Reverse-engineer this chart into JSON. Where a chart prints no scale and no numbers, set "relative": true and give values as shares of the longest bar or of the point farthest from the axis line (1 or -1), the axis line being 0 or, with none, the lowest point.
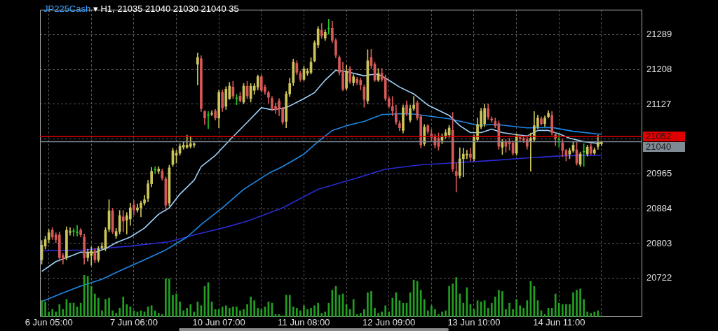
{
  "chart_data": [
    {
      "type": "candlestick",
      "title": "JP225Cash ▾ H1, 21035 21040 21030 21040 35",
      "categories": [
        null,
        null,
        "6 Jun 05:00",
        null,
        null,
        null,
        null,
        null,
        null,
        null,
        null,
        null,
        null,
        null,
        null,
        null,
        null,
        null,
        null,
        null,
        null,
        null,
        null,
        null,
        null,
        null,
        "7 Jun 06:00",
        null,
        null,
        null,
        null,
        null,
        null,
        null,
        null,
        null,
        null,
        null,
        null,
        null,
        null,
        null,
        null,
        null,
        null,
        null,
        null,
        null,
        null,
        null,
        "10 Jun 07:00",
        null,
        null,
        null,
        null,
        null,
        null,
        null,
        null,
        null,
        null,
        null,
        null,
        null,
        null,
        null,
        null,
        null,
        null,
        null,
        null,
        null,
        null,
        null,
        "11 Jun 08:00",
        null,
        null,
        null,
        null,
        null,
        null,
        null,
        null,
        null,
        null,
        null,
        null,
        null,
        null,
        null,
        null,
        null,
        null,
        null,
        null,
        null,
        null,
        null,
        "12 Jun 09:00",
        null,
        null,
        null,
        null,
        null,
        null,
        null,
        null,
        null,
        null,
        null,
        null,
        null,
        null,
        null,
        null,
        null,
        null,
        null,
        null,
        null,
        null,
        null,
        "13 Jun 10:00",
        null,
        null,
        null,
        null,
        null,
        null,
        null,
        null,
        null,
        null,
        null,
        null,
        null,
        null,
        null,
        null,
        null,
        null,
        null,
        null,
        null,
        null,
        null,
        "14 Jun 11:00",
        null,
        null,
        null,
        null,
        null,
        null,
        null,
        null,
        null,
        null,
        null,
        null,
        null,
        null,
        null,
        null,
        null,
        null,
        null,
        null,
        null,
        null,
        null
      ],
      "ohlc": [
        [
          20765,
          20810,
          20755,
          20799
        ],
        [
          20797,
          20820,
          20790,
          20812
        ],
        [
          20812,
          20836,
          20805,
          20828
        ],
        [
          20834,
          20840,
          20812,
          20818
        ],
        [
          20823,
          20828,
          20805,
          20812
        ],
        [
          20823,
          20830,
          20762,
          20770
        ],
        [
          20775,
          20780,
          20755,
          20767
        ],
        [
          20770,
          20842,
          20765,
          20834
        ],
        [
          20829,
          20840,
          20822,
          20831
        ],
        [
          20831,
          20838,
          20820,
          20831
        ],
        [
          20828,
          20845,
          20820,
          20828
        ],
        [
          20834,
          20838,
          20818,
          20823
        ],
        [
          20818,
          20825,
          20755,
          20770
        ],
        [
          20770,
          20790,
          20762,
          20781
        ],
        [
          20775,
          20795,
          20752,
          20786
        ],
        [
          20786,
          20792,
          20758,
          20765
        ],
        [
          20765,
          20796,
          20760,
          20791
        ],
        [
          20793,
          20805,
          20788,
          20797
        ],
        [
          20791,
          20840,
          20786,
          20834
        ],
        [
          20836,
          20905,
          20830,
          20879
        ],
        [
          20879,
          20885,
          20826,
          20831
        ],
        [
          20821,
          20838,
          20815,
          20831
        ],
        [
          20831,
          20880,
          20825,
          20868
        ],
        [
          20865,
          20880,
          20830,
          20855
        ],
        [
          20857,
          20875,
          20825,
          20868
        ],
        [
          20860,
          20897,
          20845,
          20886
        ],
        [
          20892,
          20903,
          20870,
          20881
        ],
        [
          20881,
          20895,
          20876,
          20886
        ],
        [
          20886,
          20902,
          20865,
          20897
        ],
        [
          20897,
          20915,
          20892,
          20905
        ],
        [
          20908,
          20950,
          20900,
          20942
        ],
        [
          20942,
          20980,
          20935,
          20971
        ],
        [
          20974,
          20982,
          20966,
          20974
        ],
        [
          20971,
          20982,
          20966,
          20976
        ],
        [
          20971,
          20976,
          20950,
          20955
        ],
        [
          20953,
          20958,
          20878,
          20892
        ],
        [
          20897,
          20985,
          20890,
          20979
        ],
        [
          20987,
          21025,
          20982,
          21019
        ],
        [
          21008,
          21020,
          20990,
          21013
        ],
        [
          21013,
          21035,
          21008,
          21029
        ],
        [
          21027,
          21040,
          21022,
          21032
        ],
        [
          21027,
          21055,
          21024,
          21032
        ],
        [
          21029,
          21052,
          21025,
          21035
        ],
        [
          21032,
          21038,
          21027,
          21035
        ],
        [
          21220,
          21246,
          21172,
          21236
        ],
        [
          21233,
          21240,
          21110,
          21117
        ],
        [
          21110,
          21112,
          21080,
          21095
        ],
        [
          21101,
          21110,
          21070,
          21101
        ],
        [
          21104,
          21112,
          21100,
          21106
        ],
        [
          21111,
          21115,
          21090,
          21095
        ],
        [
          21095,
          21160,
          21072,
          21155
        ],
        [
          21155,
          21160,
          21110,
          21119
        ],
        [
          21122,
          21168,
          21115,
          21162
        ],
        [
          21140,
          21178,
          21138,
          21169
        ],
        [
          21167,
          21180,
          21140,
          21146
        ],
        [
          21140,
          21150,
          21126,
          21140
        ],
        [
          21146,
          21155,
          21132,
          21135
        ],
        [
          21132,
          21175,
          21128,
          21169
        ],
        [
          21169,
          21180,
          21140,
          21146
        ],
        [
          21140,
          21175,
          21132,
          21169
        ],
        [
          21159,
          21175,
          21150,
          21169
        ],
        [
          21167,
          21195,
          21160,
          21191
        ],
        [
          21191,
          21195,
          21155,
          21159
        ],
        [
          21167,
          21172,
          21150,
          21156
        ],
        [
          21154,
          21158,
          21130,
          21143
        ],
        [
          21140,
          21145,
          21112,
          21117
        ],
        [
          21122,
          21130,
          21105,
          21114
        ],
        [
          21135,
          21140,
          21100,
          21117
        ],
        [
          21117,
          21120,
          21080,
          21085
        ],
        [
          21087,
          21157,
          21072,
          21151
        ],
        [
          21151,
          21188,
          21145,
          21175
        ],
        [
          21177,
          21232,
          21170,
          21225
        ],
        [
          21222,
          21228,
          21196,
          21201
        ],
        [
          21199,
          21204,
          21180,
          21185
        ],
        [
          21185,
          21215,
          21182,
          21209
        ],
        [
          21199,
          21210,
          21194,
          21204
        ],
        [
          21201,
          21235,
          21197,
          21225
        ],
        [
          21228,
          21275,
          21225,
          21270
        ],
        [
          21265,
          21308,
          21258,
          21302
        ],
        [
          21299,
          21315,
          21280,
          21286
        ],
        [
          21281,
          21300,
          21275,
          21294
        ],
        [
          21302,
          21325,
          21290,
          21302
        ],
        [
          21304,
          21320,
          21270,
          21275
        ],
        [
          21275,
          21280,
          21235,
          21241
        ],
        [
          21236,
          21240,
          21195,
          21201
        ],
        [
          21201,
          21225,
          21158,
          21162
        ],
        [
          21164,
          21218,
          21160,
          21204
        ],
        [
          21209,
          21215,
          21175,
          21180
        ],
        [
          21177,
          21196,
          21170,
          21191
        ],
        [
          21185,
          21190,
          21172,
          21177
        ],
        [
          21183,
          21188,
          21160,
          21172
        ],
        [
          21167,
          21172,
          21120,
          21138
        ],
        [
          21135,
          21254,
          21128,
          21228
        ],
        [
          21236,
          21255,
          21210,
          21217
        ],
        [
          21220,
          21225,
          21180,
          21183
        ],
        [
          21183,
          21210,
          21180,
          21199
        ],
        [
          21199,
          21210,
          21180,
          21185
        ],
        [
          21188,
          21195,
          21135,
          21140
        ],
        [
          21140,
          21145,
          21118,
          21122
        ],
        [
          21122,
          21145,
          21100,
          21111
        ],
        [
          21106,
          21125,
          21080,
          21085
        ],
        [
          21082,
          21088,
          21065,
          21072
        ],
        [
          21066,
          21125,
          21060,
          21119
        ],
        [
          21125,
          21135,
          21100,
          21106
        ],
        [
          21090,
          21125,
          21085,
          21117
        ],
        [
          21117,
          21145,
          21112,
          21125
        ],
        [
          21130,
          21135,
          21090,
          21095
        ],
        [
          21098,
          21102,
          21025,
          21032
        ],
        [
          21035,
          21080,
          21030,
          21074
        ],
        [
          21077,
          21080,
          21058,
          21064
        ],
        [
          21058,
          21068,
          21040,
          21050
        ],
        [
          21053,
          21058,
          21025,
          21032
        ],
        [
          21048,
          21060,
          21020,
          21029
        ],
        [
          21043,
          21058,
          21035,
          21050
        ],
        [
          21053,
          21068,
          21048,
          21061
        ],
        [
          21056,
          21078,
          21050,
          21072
        ],
        [
          21066,
          21108,
          20970,
          20976
        ],
        [
          20971,
          20990,
          20923,
          20961
        ],
        [
          20961,
          21026,
          20955,
          21000
        ],
        [
          21000,
          21025,
          20958,
          21011
        ],
        [
          21008,
          21020,
          21000,
          21011
        ],
        [
          21011,
          21025,
          20995,
          21003
        ],
        [
          21000,
          21056,
          20995,
          21050
        ],
        [
          21045,
          21095,
          21040,
          21080
        ],
        [
          21074,
          21118,
          21070,
          21111
        ],
        [
          21082,
          21127,
          21075,
          21117
        ],
        [
          21117,
          21128,
          21092,
          21098
        ],
        [
          21093,
          21098,
          21085,
          21090
        ],
        [
          21087,
          21095,
          21072,
          21077
        ],
        [
          21082,
          21088,
          21022,
          21029
        ],
        [
          21027,
          21045,
          21010,
          21040
        ],
        [
          21040,
          21045,
          21015,
          21029
        ],
        [
          21040,
          21048,
          21020,
          21035
        ],
        [
          21037,
          21042,
          21008,
          21013
        ],
        [
          21013,
          21058,
          21008,
          21053
        ],
        [
          21050,
          21055,
          21040,
          21048
        ],
        [
          21048,
          21052,
          21038,
          21043
        ],
        [
          21045,
          21050,
          21022,
          21029
        ],
        [
          21040,
          21060,
          20971,
          21048
        ],
        [
          21045,
          21110,
          21040,
          21077
        ],
        [
          21074,
          21102,
          21070,
          21095
        ],
        [
          21093,
          21098,
          21078,
          21082
        ],
        [
          21082,
          21100,
          21075,
          21095
        ],
        [
          21098,
          21112,
          21095,
          21106
        ],
        [
          21101,
          21110,
          21055,
          21061
        ],
        [
          21056,
          21062,
          21030,
          21048
        ],
        [
          21045,
          21056,
          21027,
          21045
        ],
        [
          21037,
          21045,
          21005,
          21019
        ],
        [
          21019,
          21022,
          20995,
          21008
        ],
        [
          21011,
          21025,
          21000,
          21019
        ],
        [
          21019,
          21040,
          21015,
          21032
        ],
        [
          21021,
          21040,
          20985,
          20990
        ],
        [
          20987,
          21016,
          20982,
          21011
        ],
        [
          21016,
          21035,
          20982,
          21016
        ],
        [
          21011,
          21032,
          21006,
          21027
        ],
        [
          21029,
          21035,
          21010,
          21013
        ],
        [
          21013,
          21026,
          21010,
          21021
        ],
        [
          21029,
          21055,
          21022,
          21040
        ],
        [
          21035,
          21040,
          21030,
          21040
        ],
        null,
        null,
        null,
        null,
        null,
        null,
        null,
        null,
        null,
        null,
        null
      ],
      "colors": [
        "#cbc55a",
        "#cbc55a",
        "#cbc55a",
        "#d65858",
        "#d65858",
        "#d65858",
        "#d65858",
        "#cbc55a",
        "#cbc55a",
        "#22c322",
        "#22c322",
        "#d65858",
        "#d65858",
        "#cbc55a",
        "#cbc55a",
        "#d65858",
        "#cbc55a",
        "#cbc55a",
        "#cbc55a",
        "#cbc55a",
        "#d65858",
        "#cbc55a",
        "#cbc55a",
        "#d65858",
        "#cbc55a",
        "#cbc55a",
        "#d65858",
        "#cbc55a",
        "#cbc55a",
        "#cbc55a",
        "#cbc55a",
        "#cbc55a",
        "#22c322",
        "#cbc55a",
        "#d65858",
        "#d65858",
        "#cbc55a",
        "#cbc55a",
        "#cbc55a",
        "#cbc55a",
        "#cbc55a",
        "#cbc55a",
        "#cbc55a",
        "#cbc55a",
        "#cbc55a",
        "#d65858",
        "#d65858",
        "#22c322",
        "#cbc55a",
        "#d65858",
        "#cbc55a",
        "#d65858",
        "#cbc55a",
        "#cbc55a",
        "#d65858",
        "#22c322",
        "#d65858",
        "#cbc55a",
        "#d65858",
        "#cbc55a",
        "#cbc55a",
        "#cbc55a",
        "#d65858",
        "#d65858",
        "#d65858",
        "#d65858",
        "#d65858",
        "#d65858",
        "#d65858",
        "#cbc55a",
        "#cbc55a",
        "#cbc55a",
        "#d65858",
        "#d65858",
        "#cbc55a",
        "#cbc55a",
        "#cbc55a",
        "#cbc55a",
        "#cbc55a",
        "#d65858",
        "#cbc55a",
        "#22c322",
        "#d65858",
        "#d65858",
        "#d65858",
        "#d65858",
        "#cbc55a",
        "#d65858",
        "#cbc55a",
        "#d65858",
        "#d65858",
        "#d65858",
        "#cbc55a",
        "#d65858",
        "#d65858",
        "#cbc55a",
        "#d65858",
        "#d65858",
        "#d65858",
        "#d65858",
        "#d65858",
        "#d65858",
        "#cbc55a",
        "#d65858",
        "#cbc55a",
        "#cbc55a",
        "#d65858",
        "#d65858",
        "#cbc55a",
        "#d65858",
        "#d65858",
        "#d65858",
        "#d65858",
        "#cbc55a",
        "#cbc55a",
        "#cbc55a",
        "#d65858",
        "#d65858",
        "#cbc55a",
        "#cbc55a",
        "#cbc55a",
        "#d65858",
        "#cbc55a",
        "#cbc55a",
        "#cbc55a",
        "#cbc55a",
        "#d65858",
        "#d65858",
        "#d65858",
        "#d65858",
        "#cbc55a",
        "#d65858",
        "#d65858",
        "#d65858",
        "#cbc55a",
        "#d65858",
        "#d65858",
        "#d65858",
        "#cbc55a",
        "#cbc55a",
        "#cbc55a",
        "#d65858",
        "#cbc55a",
        "#cbc55a",
        "#d65858",
        "#d65858",
        "#22c322",
        "#d65858",
        "#d65858",
        "#cbc55a",
        "#cbc55a",
        "#d65858",
        "#cbc55a",
        "#22c322",
        "#cbc55a",
        "#d65858",
        "#cbc55a",
        "#cbc55a",
        "#cbc55a",
        null,
        null,
        null,
        null,
        null,
        null,
        null,
        null,
        null,
        null,
        null
      ],
      "series": [
        {
          "type": "line",
          "color": "#9fd0f8",
          "values": [
            20738,
            null,
            null,
            null,
            20761,
            null,
            null,
            20770,
            null,
            null,
            null,
            20783,
            null,
            null,
            null,
            20782,
            null,
            null,
            20791,
            null,
            null,
            20805,
            null,
            null,
            null,
            20818,
            null,
            null,
            null,
            20839,
            null,
            null,
            null,
            20871,
            null,
            null,
            20886,
            null,
            null,
            20918,
            null,
            null,
            null,
            20950,
            null,
            20982,
            null,
            null,
            null,
            21008,
            null,
            null,
            null,
            21043,
            null,
            null,
            null,
            null,
            21085,
            null,
            null,
            null,
            21119,
            null,
            null,
            21114,
            null,
            null,
            null,
            21119,
            null,
            null,
            null,
            null,
            21140,
            null,
            null,
            21154,
            null,
            null,
            21183,
            null,
            null,
            21206,
            null,
            null,
            21203,
            null,
            null,
            null,
            null,
            21193,
            null,
            21196,
            null,
            21196,
            null,
            21188,
            null,
            null,
            null,
            21167,
            null,
            null,
            null,
            21151,
            null,
            null,
            null,
            21125,
            null,
            null,
            null,
            null,
            null,
            21101,
            null,
            null,
            21077,
            null,
            null,
            21061,
            null,
            null,
            21061,
            null,
            null,
            21069,
            null,
            null,
            21061,
            null,
            null,
            null,
            21056,
            null,
            null,
            21053,
            null,
            null,
            21066,
            null,
            null,
            21066,
            null,
            null,
            21058,
            null,
            null,
            21048,
            null,
            null,
            null,
            21040,
            null,
            null,
            null,
            21036,
            21037,
            null,
            null,
            null,
            null,
            null,
            null,
            null,
            null,
            null,
            null,
            null
          ]
        },
        {
          "type": "line",
          "color": "#1e88e5",
          "values": [
            20668,
            null,
            null,
            null,
            null,
            20685,
            null,
            null,
            null,
            null,
            null,
            20704,
            null,
            null,
            null,
            null,
            null,
            20720,
            null,
            null,
            null,
            null,
            null,
            20743,
            null,
            null,
            null,
            null,
            null,
            20765,
            null,
            null,
            null,
            null,
            null,
            20788,
            null,
            null,
            null,
            null,
            null,
            20818,
            null,
            null,
            null,
            20847,
            null,
            null,
            null,
            null,
            null,
            20886,
            null,
            null,
            null,
            null,
            null,
            20929,
            null,
            null,
            null,
            null,
            null,
            null,
            20966,
            null,
            null,
            null,
            20982,
            null,
            null,
            null,
            null,
            null,
            21011,
            null,
            null,
            null,
            21040,
            null,
            null,
            null,
            21066,
            null,
            null,
            null,
            21077,
            null,
            null,
            null,
            null,
            21087,
            null,
            null,
            null,
            null,
            21103,
            null,
            null,
            null,
            null,
            21105,
            null,
            null,
            null,
            21104,
            null,
            null,
            null,
            null,
            null,
            null,
            null,
            null,
            null,
            21093,
            null,
            null,
            null,
            null,
            null,
            null,
            null,
            21078,
            null,
            null,
            null,
            null,
            21080,
            null,
            null,
            null,
            null,
            null,
            null,
            null,
            null,
            21072,
            null,
            null,
            null,
            null,
            null,
            null,
            21073,
            null,
            null,
            null,
            null,
            null,
            21064,
            null,
            null,
            null,
            null,
            null,
            null,
            null,
            21057,
            null,
            null,
            null,
            null,
            null,
            null,
            null,
            null,
            null,
            null,
            null
          ]
        },
        {
          "type": "line",
          "color": "#2a2ad0",
          "values": [
            20786,
            null,
            null,
            null,
            null,
            null,
            null,
            null,
            null,
            null,
            null,
            null,
            20788,
            null,
            null,
            null,
            null,
            null,
            null,
            null,
            null,
            null,
            null,
            null,
            null,
            20797,
            null,
            null,
            null,
            null,
            null,
            null,
            null,
            null,
            null,
            null,
            20807,
            null,
            null,
            null,
            null,
            null,
            null,
            20823,
            null,
            null,
            null,
            null,
            null,
            null,
            null,
            null,
            20841,
            null,
            null,
            null,
            null,
            null,
            20855,
            null,
            null,
            null,
            null,
            null,
            null,
            null,
            null,
            null,
            20886,
            null,
            null,
            null,
            null,
            null,
            null,
            null,
            null,
            null,
            20929,
            null,
            null,
            null,
            null,
            null,
            null,
            null,
            null,
            null,
            20953,
            null,
            null,
            null,
            null,
            null,
            null,
            null,
            null,
            20976,
            null,
            null,
            null,
            null,
            null,
            null,
            null,
            null,
            null,
            20986,
            null,
            null,
            null,
            null,
            null,
            null,
            null,
            null,
            null,
            20991,
            null,
            null,
            null,
            null,
            null,
            null,
            null,
            null,
            null,
            20996,
            null,
            null,
            null,
            null,
            null,
            null,
            null,
            null,
            null,
            21002,
            null,
            null,
            null,
            null,
            null,
            null,
            null,
            null,
            null,
            21007,
            null,
            null,
            null,
            null,
            null,
            null,
            null,
            null,
            null,
            null,
            21008,
            null,
            null,
            null,
            null,
            null,
            null,
            null,
            null,
            null,
            null,
            null
          ]
        }
      ],
      "ylim": [
        20632,
        21347
      ],
      "yticks": [
        20722,
        20803,
        20884,
        20965,
        {
          "value": 21046,
          "label": null
        },
        21127,
        21208,
        21289
      ],
      "grid": true,
      "ref_lines": [
        {
          "axis": "y",
          "value": 21052,
          "label": "21052",
          "color": "#e00000"
        },
        {
          "axis": "y",
          "value": 21040,
          "label": "21040",
          "color": "#7f8a94"
        }
      ]
    },
    {
      "type": "bar",
      "relative": true,
      "color": "#22a022",
      "categories": [
        null,
        null,
        null,
        null,
        null,
        null,
        null,
        null,
        null,
        null,
        null,
        null,
        null,
        null,
        null,
        null,
        null,
        null,
        null,
        null,
        null,
        null,
        null,
        null,
        null,
        null,
        null,
        null,
        null,
        null,
        null,
        null,
        null,
        null,
        null,
        null,
        null,
        null,
        null,
        null,
        null,
        null,
        null,
        null,
        null,
        null,
        null,
        null,
        null,
        null,
        null,
        null,
        null,
        null,
        null,
        null,
        null,
        null,
        null,
        null,
        null,
        null,
        null,
        null,
        null,
        null,
        null,
        null,
        null,
        null,
        null,
        null,
        null,
        null,
        null,
        null,
        null,
        null,
        null,
        null,
        null,
        null,
        null,
        null,
        null,
        null,
        null,
        null,
        null,
        null,
        null,
        null,
        null,
        null,
        null,
        null,
        null,
        null,
        null,
        null,
        null,
        null,
        null,
        null,
        null,
        null,
        null,
        null,
        null,
        null,
        null,
        null,
        null,
        null,
        null,
        null,
        null,
        null,
        null,
        null,
        null,
        null,
        null,
        null,
        null,
        null,
        null,
        null,
        null,
        null,
        null,
        null,
        null,
        null,
        null,
        null,
        null,
        null,
        null,
        null,
        null,
        null,
        null,
        null,
        null,
        null,
        null,
        null,
        null,
        null,
        null,
        null,
        null,
        null,
        null,
        null,
        null,
        null,
        null,
        null,
        null,
        null,
        null,
        null,
        null,
        null,
        null,
        null,
        null,
        null
      ],
      "values": [
        0.39,
        0.36,
        0.12,
        0.18,
        0.12,
        0.3,
        0.18,
        0.42,
        0.33,
        0.33,
        0.24,
        0.33,
        1,
        0.97,
        0.73,
        0.55,
        0.45,
        0.15,
        0.42,
        0.45,
        0.15,
        0.09,
        0.21,
        0.48,
        0.3,
        0.24,
        0.15,
        0.12,
        0.15,
        0.12,
        0.24,
        0.27,
        0.15,
        0.09,
        0.06,
        0.91,
        0.91,
        0.52,
        0.55,
        0.36,
        0.15,
        0.21,
        0.3,
        0.12,
        0.36,
        0.27,
        0.73,
        0.82,
        0.36,
        0.18,
        0.18,
        0.24,
        0.27,
        0.21,
        0.24,
        0.24,
        0.15,
        0.18,
        0.3,
        0.48,
        0.39,
        0.21,
        0.18,
        0.24,
        0.36,
        0.33,
        0.06,
        0.06,
        0.03,
        0.52,
        0.52,
        0.24,
        0.21,
        0.15,
        0.27,
        0.18,
        0.21,
        0.27,
        0.33,
        0.09,
        0.12,
        0.33,
        0.64,
        0.73,
        0.52,
        0.55,
        0.3,
        0.18,
        0.42,
        0.06,
        0.09,
        0.18,
        0.58,
        0.61,
        0.21,
        0.09,
        0.12,
        0.27,
        0.12,
        0.45,
        0.58,
        0.39,
        0.33,
        0.33,
        0.58,
        0.88,
        0.85,
        0.64,
        0.42,
        0.15,
        0.27,
        0.18,
        0.06,
        0.12,
        0.15,
        0.73,
        0.79,
        0.94,
        0.55,
        0.33,
        0.7,
        0.3,
        0.18,
        0.39,
        0.36,
        0.39,
        0.21,
        0.33,
        0.48,
        0.64,
        0.61,
        0.18,
        0.33,
        0.18,
        0.42,
        0.27,
        0.21,
        0.39,
        0.85,
        0.73,
        0.39,
        0.15,
        0.06,
        0.21,
        0.21,
        0.55,
        0.33,
        0.3,
        0.3,
        0.3,
        0.58,
        0.64,
        0.67,
        0.42,
        0.12,
        0.09,
        0.12,
        0.15,
        0.03,
        null,
        null,
        null,
        null,
        null,
        null,
        null,
        null,
        null,
        null,
        null
      ]
    }
  ]
}
